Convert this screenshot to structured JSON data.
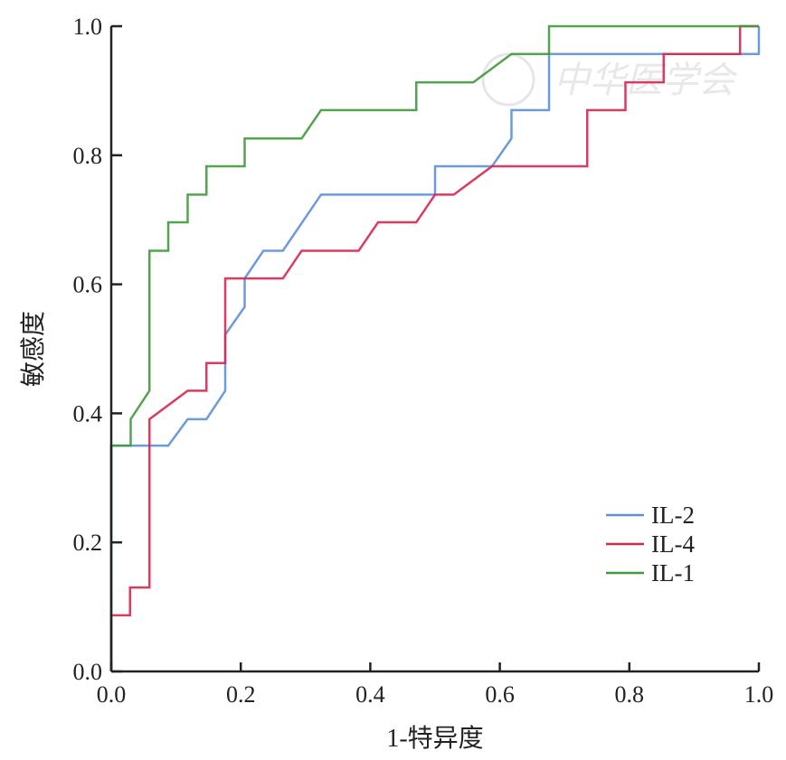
{
  "chart_data": {
    "type": "line",
    "title": "",
    "xlabel": "1-特异度",
    "ylabel": "敏感度",
    "xlim": [
      0,
      1
    ],
    "ylim": [
      0,
      1
    ],
    "xticks": [
      "0.0",
      "0.2",
      "0.4",
      "0.6",
      "0.8",
      "1.0"
    ],
    "yticks": [
      "0.0",
      "0.2",
      "0.4",
      "0.6",
      "0.8",
      "1.0"
    ],
    "grid": false,
    "legend_position": "bottom-right",
    "watermark": "中华医学会",
    "series": [
      {
        "name": "IL-2",
        "color": "#5b8fd9",
        "points": [
          [
            0,
            0
          ],
          [
            0,
            0.35
          ],
          [
            0.088,
            0.35
          ],
          [
            0.118,
            0.391
          ],
          [
            0.147,
            0.391
          ],
          [
            0.176,
            0.435
          ],
          [
            0.176,
            0.522
          ],
          [
            0.206,
            0.565
          ],
          [
            0.206,
            0.609
          ],
          [
            0.235,
            0.652
          ],
          [
            0.265,
            0.652
          ],
          [
            0.324,
            0.739
          ],
          [
            0.5,
            0.739
          ],
          [
            0.5,
            0.783
          ],
          [
            0.588,
            0.783
          ],
          [
            0.618,
            0.826
          ],
          [
            0.618,
            0.87
          ],
          [
            0.676,
            0.87
          ],
          [
            0.676,
            0.957
          ],
          [
            1,
            0.957
          ],
          [
            1,
            1
          ]
        ]
      },
      {
        "name": "IL-4",
        "color": "#d8264f",
        "points": [
          [
            0,
            0
          ],
          [
            0,
            0.087
          ],
          [
            0.029,
            0.087
          ],
          [
            0.029,
            0.13
          ],
          [
            0.059,
            0.13
          ],
          [
            0.059,
            0.391
          ],
          [
            0.118,
            0.435
          ],
          [
            0.147,
            0.435
          ],
          [
            0.147,
            0.478
          ],
          [
            0.176,
            0.478
          ],
          [
            0.176,
            0.609
          ],
          [
            0.265,
            0.609
          ],
          [
            0.294,
            0.652
          ],
          [
            0.382,
            0.652
          ],
          [
            0.412,
            0.696
          ],
          [
            0.471,
            0.696
          ],
          [
            0.5,
            0.739
          ],
          [
            0.529,
            0.739
          ],
          [
            0.588,
            0.783
          ],
          [
            0.735,
            0.783
          ],
          [
            0.735,
            0.87
          ],
          [
            0.794,
            0.87
          ],
          [
            0.794,
            0.913
          ],
          [
            0.853,
            0.913
          ],
          [
            0.853,
            0.957
          ],
          [
            0.971,
            0.957
          ],
          [
            0.971,
            1
          ],
          [
            1,
            1
          ]
        ]
      },
      {
        "name": "IL-1",
        "color": "#3f9a3c",
        "points": [
          [
            0,
            0
          ],
          [
            0,
            0.35
          ],
          [
            0.03,
            0.35
          ],
          [
            0.03,
            0.391
          ],
          [
            0.059,
            0.435
          ],
          [
            0.059,
            0.652
          ],
          [
            0.088,
            0.652
          ],
          [
            0.088,
            0.696
          ],
          [
            0.118,
            0.696
          ],
          [
            0.118,
            0.739
          ],
          [
            0.147,
            0.739
          ],
          [
            0.147,
            0.783
          ],
          [
            0.206,
            0.783
          ],
          [
            0.206,
            0.826
          ],
          [
            0.294,
            0.826
          ],
          [
            0.324,
            0.87
          ],
          [
            0.471,
            0.87
          ],
          [
            0.471,
            0.913
          ],
          [
            0.559,
            0.913
          ],
          [
            0.618,
            0.957
          ],
          [
            0.676,
            0.957
          ],
          [
            0.676,
            1
          ],
          [
            1,
            1
          ]
        ]
      }
    ]
  }
}
